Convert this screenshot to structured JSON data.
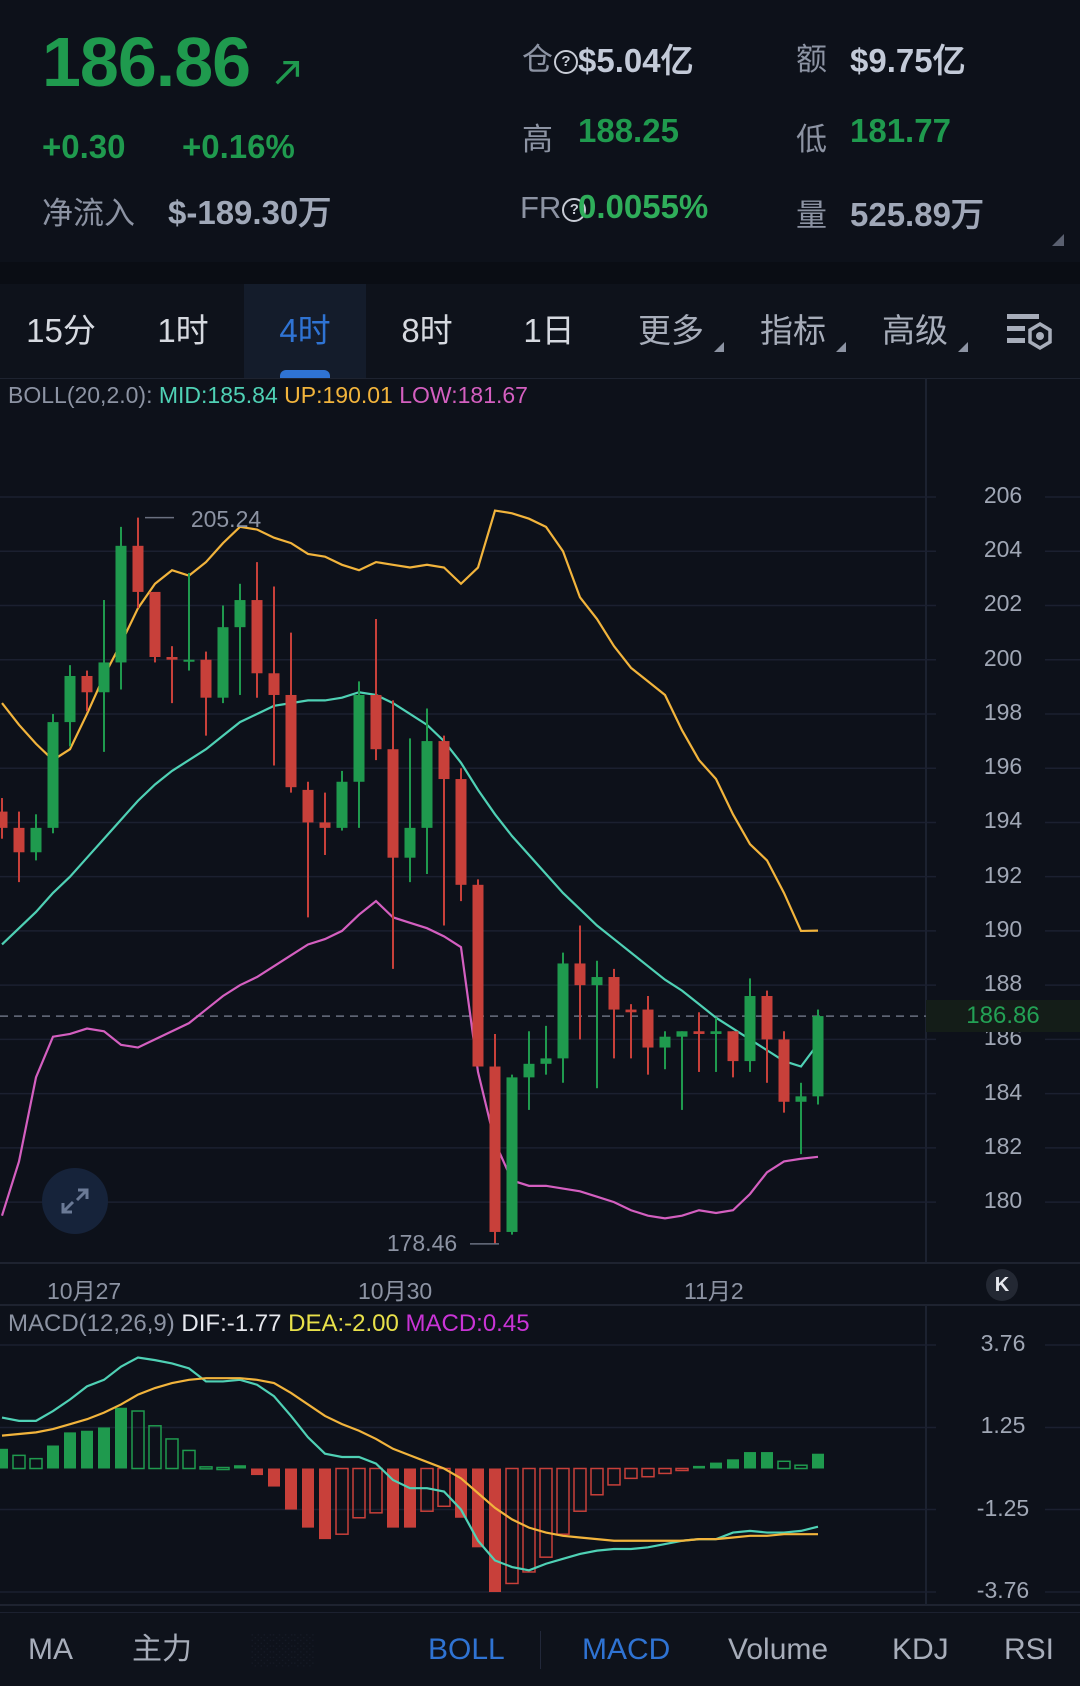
{
  "header": {
    "last_price": "186.86",
    "change": "+0.30",
    "change_pct": "+0.16%",
    "net_inflow_label": "净流入",
    "net_inflow_value": "$-189.30万",
    "stats": {
      "open_interest_label": "仓",
      "open_interest_value": "$5.04亿",
      "turnover_label": "额",
      "turnover_value": "$9.75亿",
      "high_label": "高",
      "high_value": "188.25",
      "low_label": "低",
      "low_value": "181.77",
      "funding_rate_label": "FR",
      "funding_rate_value": "0.0055%",
      "volume_label": "量",
      "volume_value": "525.89万"
    }
  },
  "colors": {
    "up": "#1f9a4e",
    "down": "#c8403a",
    "mid": "#4fd1b5",
    "upper": "#f2b43c",
    "lower": "#d45fc0",
    "accent": "#2f73d3",
    "dif": "#e6e8ee",
    "dea": "#e8e04a",
    "macd": "#c934d6"
  },
  "timeframe_tabs": [
    {
      "label": "15分"
    },
    {
      "label": "1时"
    },
    {
      "label": "4时",
      "active": true
    },
    {
      "label": "8时"
    },
    {
      "label": "1日"
    },
    {
      "label": "更多"
    },
    {
      "label": "指标"
    },
    {
      "label": "高级"
    }
  ],
  "boll_legend": {
    "name": "BOLL(20,2.0):",
    "mid": "MID:185.84",
    "up": "UP:190.01",
    "low": "LOW:181.67"
  },
  "macd_legend": {
    "name": "MACD(12,26,9)",
    "dif": "DIF:-1.77",
    "dea": "DEA:-2.00",
    "macd": "MACD:0.45"
  },
  "price_tag": "186.86",
  "bottom_tabs": [
    {
      "label": "MA"
    },
    {
      "label": "主力"
    },
    {
      "label": "░░░",
      "faded": true
    },
    {
      "label": "BOLL",
      "active": true
    },
    {
      "label": "MACD",
      "active": true
    },
    {
      "label": "Volume"
    },
    {
      "label": "KDJ"
    },
    {
      "label": "RSI"
    }
  ],
  "chart_data": [
    {
      "type": "candlestick",
      "title": "BOLL(20,2.0) 4H",
      "y_ticks": [
        206,
        204,
        202,
        200,
        198,
        196,
        194,
        192,
        190,
        188,
        186,
        184,
        182,
        180
      ],
      "ylim": [
        177.9,
        207.4
      ],
      "x_tick_labels": [
        {
          "label": "10月27",
          "index": 5
        },
        {
          "label": "10月30",
          "index": 22
        },
        {
          "label": "11月2",
          "index": 39
        }
      ],
      "annotations": [
        {
          "label": "205.24",
          "type": "max"
        },
        {
          "label": "178.46",
          "type": "min"
        }
      ],
      "current_price": 186.86,
      "grid": true,
      "candles": [
        [
          194.4,
          194.9,
          193.4,
          193.8
        ],
        [
          193.8,
          194.4,
          191.8,
          192.9
        ],
        [
          192.9,
          194.3,
          192.6,
          193.8
        ],
        [
          193.8,
          198.0,
          193.6,
          197.7
        ],
        [
          197.7,
          199.8,
          196.8,
          199.4
        ],
        [
          199.4,
          199.6,
          198.1,
          198.8
        ],
        [
          198.8,
          202.2,
          196.6,
          199.9
        ],
        [
          199.9,
          204.9,
          198.9,
          204.2
        ],
        [
          204.2,
          205.24,
          201.9,
          202.5
        ],
        [
          202.5,
          202.3,
          199.9,
          200.1
        ],
        [
          200.1,
          200.5,
          198.4,
          200.0
        ],
        [
          200.0,
          203.2,
          199.6,
          200.0
        ],
        [
          200.0,
          200.3,
          197.2,
          198.6
        ],
        [
          198.6,
          202.0,
          198.4,
          201.2
        ],
        [
          201.2,
          202.8,
          198.7,
          202.2
        ],
        [
          202.2,
          203.6,
          198.6,
          199.5
        ],
        [
          199.5,
          202.7,
          196.1,
          198.7
        ],
        [
          198.7,
          201.0,
          195.1,
          195.3
        ],
        [
          195.2,
          195.5,
          190.5,
          194.0
        ],
        [
          194.0,
          195.1,
          192.8,
          193.8
        ],
        [
          193.8,
          195.9,
          193.7,
          195.5
        ],
        [
          195.5,
          199.2,
          193.8,
          198.7
        ],
        [
          198.7,
          201.5,
          196.3,
          196.7
        ],
        [
          196.7,
          198.5,
          188.6,
          192.7
        ],
        [
          192.7,
          197.1,
          191.8,
          193.8
        ],
        [
          193.8,
          198.2,
          192.1,
          197.0
        ],
        [
          197.0,
          197.2,
          190.2,
          195.6
        ],
        [
          195.6,
          196.0,
          191.1,
          191.7
        ],
        [
          191.7,
          191.9,
          185.0,
          185.0
        ],
        [
          185.0,
          186.2,
          178.46,
          178.9
        ],
        [
          178.9,
          184.7,
          178.8,
          184.6
        ],
        [
          184.6,
          186.3,
          183.4,
          185.1
        ],
        [
          185.1,
          186.5,
          184.7,
          185.3
        ],
        [
          185.3,
          189.2,
          184.4,
          188.8
        ],
        [
          188.8,
          190.2,
          186.0,
          188.0
        ],
        [
          188.0,
          188.9,
          184.2,
          188.3
        ],
        [
          188.3,
          188.6,
          185.3,
          187.1
        ],
        [
          187.1,
          187.3,
          185.3,
          187.0
        ],
        [
          187.1,
          187.6,
          184.7,
          185.7
        ],
        [
          185.7,
          186.3,
          184.9,
          186.1
        ],
        [
          186.1,
          186.3,
          183.4,
          186.3
        ],
        [
          186.3,
          187.0,
          184.8,
          186.2
        ],
        [
          186.2,
          186.8,
          184.8,
          186.3
        ],
        [
          186.3,
          186.3,
          184.6,
          185.2
        ],
        [
          185.2,
          188.25,
          184.8,
          187.6
        ],
        [
          187.6,
          187.8,
          184.4,
          186.0
        ],
        [
          186.0,
          186.3,
          183.3,
          183.7
        ],
        [
          183.7,
          184.4,
          181.77,
          183.9
        ],
        [
          183.9,
          187.1,
          183.6,
          186.86
        ]
      ],
      "series": [
        {
          "name": "UP",
          "values": [
            198.4,
            197.6,
            196.9,
            196.3,
            196.7,
            198.0,
            199.4,
            200.6,
            201.9,
            202.8,
            203.3,
            203.1,
            203.6,
            204.3,
            204.9,
            204.8,
            204.5,
            204.3,
            203.9,
            203.8,
            203.5,
            203.3,
            203.6,
            203.5,
            203.4,
            203.5,
            203.4,
            202.8,
            203.4,
            205.5,
            205.4,
            205.2,
            204.9,
            204.0,
            202.3,
            201.5,
            200.5,
            199.7,
            199.2,
            198.7,
            197.4,
            196.3,
            195.6,
            194.3,
            193.2,
            192.6,
            191.4,
            190.0,
            190.01
          ]
        },
        {
          "name": "MID",
          "values": [
            189.5,
            190.1,
            190.7,
            191.4,
            192.0,
            192.7,
            193.4,
            194.1,
            194.8,
            195.4,
            195.9,
            196.3,
            196.7,
            197.2,
            197.7,
            198.0,
            198.3,
            198.4,
            198.5,
            198.5,
            198.6,
            198.8,
            198.7,
            198.4,
            198.0,
            197.6,
            197.0,
            196.2,
            195.2,
            194.3,
            193.5,
            192.8,
            192.1,
            191.4,
            190.8,
            190.2,
            189.7,
            189.2,
            188.7,
            188.2,
            187.8,
            187.3,
            186.8,
            186.4,
            186.0,
            185.6,
            185.2,
            185.0,
            185.84
          ]
        },
        {
          "name": "LOW",
          "values": [
            179.5,
            181.5,
            184.6,
            186.1,
            186.2,
            186.4,
            186.3,
            185.8,
            185.7,
            186.0,
            186.3,
            186.6,
            187.1,
            187.6,
            188.0,
            188.3,
            188.7,
            189.1,
            189.5,
            189.7,
            190.0,
            190.6,
            191.1,
            190.5,
            190.3,
            190.1,
            189.8,
            189.4,
            184.8,
            182.2,
            180.8,
            180.6,
            180.6,
            180.5,
            180.4,
            180.2,
            180.0,
            179.7,
            179.5,
            179.4,
            179.5,
            179.7,
            179.6,
            179.7,
            180.3,
            181.1,
            181.5,
            181.6,
            181.67
          ]
        }
      ]
    },
    {
      "type": "macd",
      "y_ticks": [
        3.76,
        1.25,
        -1.25,
        -3.76
      ],
      "ylim": [
        -3.76,
        3.76
      ],
      "series": [
        {
          "name": "DIF",
          "values": [
            1.55,
            1.45,
            1.45,
            1.75,
            2.1,
            2.5,
            2.7,
            3.1,
            3.38,
            3.3,
            3.2,
            3.05,
            2.65,
            2.65,
            2.7,
            2.55,
            2.2,
            1.6,
            0.95,
            0.45,
            0.35,
            0.35,
            0.15,
            -0.35,
            -0.6,
            -0.6,
            -0.7,
            -1.25,
            -2.2,
            -2.8,
            -3.0,
            -3.1,
            -2.9,
            -2.75,
            -2.6,
            -2.5,
            -2.45,
            -2.45,
            -2.4,
            -2.3,
            -2.2,
            -2.15,
            -2.15,
            -1.95,
            -1.9,
            -1.95,
            -1.95,
            -1.9,
            -1.77
          ]
        },
        {
          "name": "DEA",
          "values": [
            1.0,
            1.05,
            1.1,
            1.2,
            1.35,
            1.5,
            1.7,
            1.95,
            2.25,
            2.45,
            2.6,
            2.7,
            2.75,
            2.75,
            2.75,
            2.7,
            2.6,
            2.3,
            1.95,
            1.6,
            1.35,
            1.15,
            0.9,
            0.6,
            0.4,
            0.2,
            0.0,
            -0.3,
            -0.75,
            -1.2,
            -1.55,
            -1.8,
            -1.95,
            -2.05,
            -2.1,
            -2.15,
            -2.2,
            -2.2,
            -2.2,
            -2.2,
            -2.2,
            -2.15,
            -2.15,
            -2.1,
            -2.05,
            -2.05,
            -2.0,
            -2.0,
            -2.0
          ]
        },
        {
          "name": "MACD",
          "values": [
            0.6,
            0.4,
            0.3,
            0.7,
            1.1,
            1.15,
            1.25,
            1.85,
            1.75,
            1.3,
            0.9,
            0.55,
            0.05,
            0.03,
            0.1,
            -0.2,
            -0.55,
            -1.25,
            -1.8,
            -2.15,
            -2.0,
            -1.5,
            -1.35,
            -1.8,
            -1.8,
            -1.3,
            -1.15,
            -1.5,
            -2.4,
            -3.76,
            -3.5,
            -3.15,
            -2.7,
            -2.0,
            -1.3,
            -0.8,
            -0.5,
            -0.3,
            -0.25,
            -0.15,
            -0.05,
            0.08,
            0.18,
            0.28,
            0.5,
            0.5,
            0.22,
            0.1,
            0.45
          ]
        }
      ]
    }
  ]
}
